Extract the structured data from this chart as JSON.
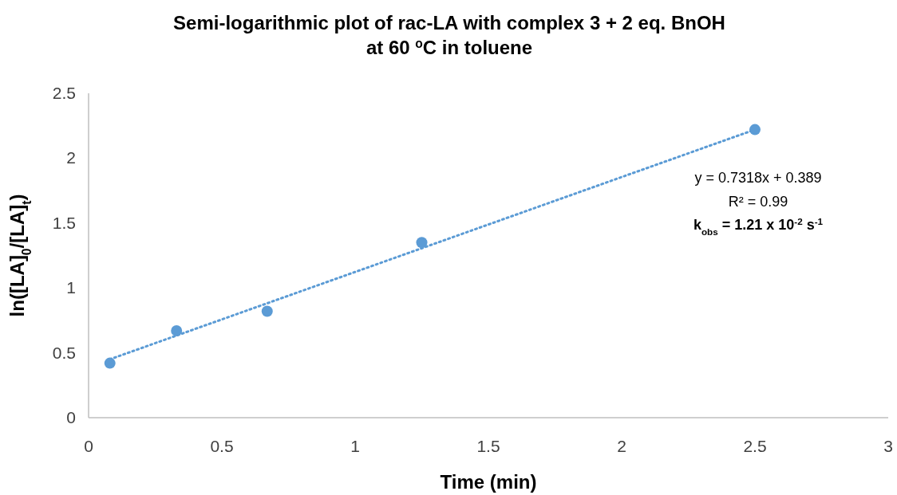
{
  "chart_data": {
    "type": "scatter",
    "title": "Semi-logarithmic plot of rac-LA with complex 3 + 2 eq. BnOH at 60 $^{o}$C in toluene",
    "xlabel": "Time (min)",
    "ylabel": "ln([LA]$_{0}$/[LA]$_{t}$)",
    "xlim": [
      0,
      3
    ],
    "xticks": [
      0,
      0.5,
      1,
      1.5,
      2,
      2.5,
      3
    ],
    "ylim": [
      0,
      2.5
    ],
    "yticks": [
      0,
      0.5,
      1,
      1.5,
      2,
      2.5
    ],
    "grid": false,
    "series": [
      {
        "color": "#5b9bd5",
        "marker": "circle",
        "x": [
          0.08,
          0.33,
          0.67,
          1.25,
          2.5
        ],
        "values": [
          0.42,
          0.67,
          0.82,
          1.35,
          2.22
        ]
      },
      {
        "type": "line",
        "color": "#5b9bd5",
        "line_style": "dotted",
        "marker": "none",
        "x": [
          0.08,
          2.5
        ],
        "values": [
          0.45,
          2.22
        ]
      }
    ],
    "annotations": [
      "y = 0.7318x + 0.389",
      "R² = 0.99",
      "k$_{obs}$ = 1.21 x 10$^{-2}$ s$^{-1}$"
    ]
  }
}
